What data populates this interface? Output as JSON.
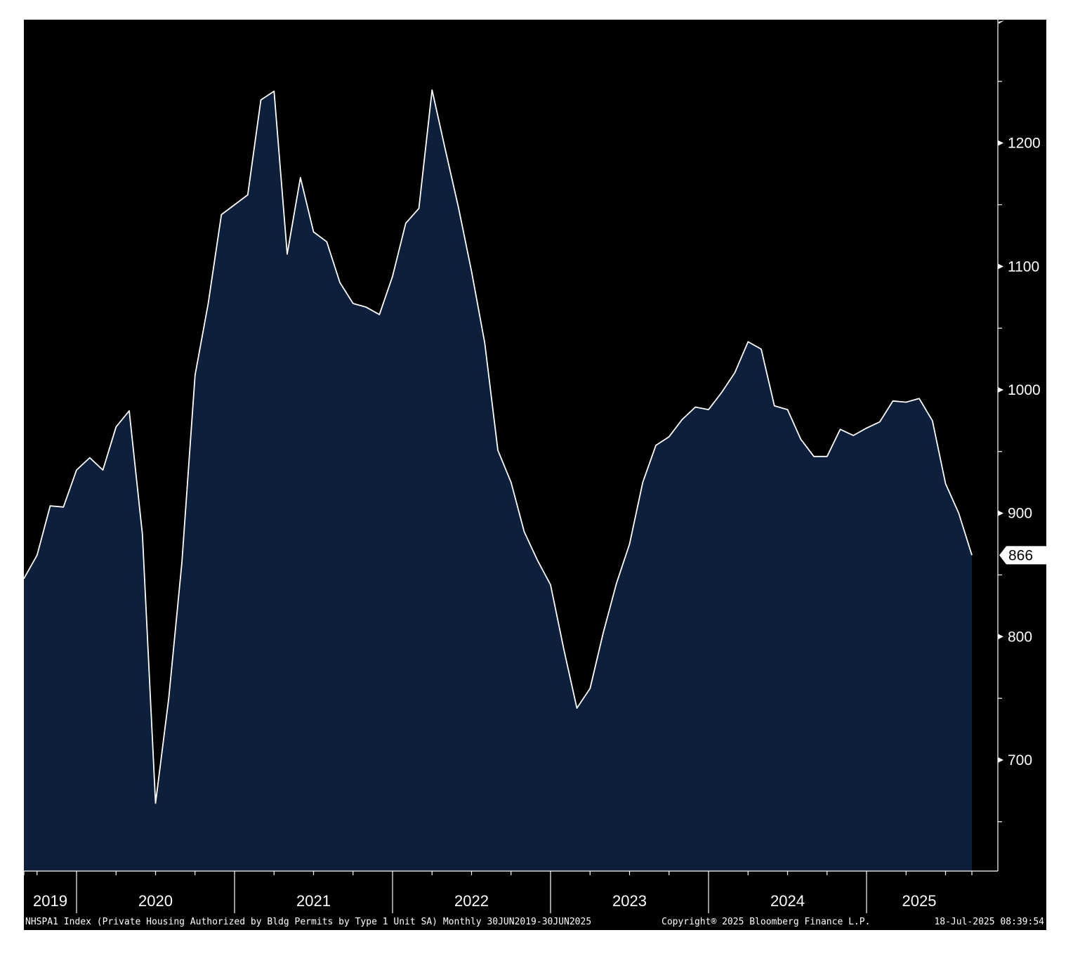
{
  "chart_data": {
    "type": "area",
    "frequency": "monthly",
    "x_start": "2019-06",
    "x_end": "2025-06",
    "ylim": [
      610,
      1300
    ],
    "yticks": [
      700,
      800,
      900,
      1000,
      1100,
      1200
    ],
    "year_labels": [
      "2019",
      "2020",
      "2021",
      "2022",
      "2023",
      "2024",
      "2025"
    ],
    "grid": false,
    "colors": {
      "background": "#000000",
      "area_fill": "#0e1f3b",
      "line": "#ffffff"
    },
    "last_value_label": "866",
    "series": [
      {
        "values": [
          847,
          866,
          906,
          905,
          935,
          945,
          935,
          970,
          983,
          883,
          665,
          750,
          860,
          1012,
          1070,
          1142,
          1150,
          1158,
          1235,
          1242,
          1110,
          1172,
          1128,
          1120,
          1087,
          1070,
          1067,
          1061,
          1092,
          1135,
          1147,
          1243,
          1195,
          1148,
          1096,
          1038,
          951,
          925,
          885,
          862,
          842,
          790,
          742,
          758,
          803,
          843,
          875,
          925,
          955,
          962,
          976,
          986,
          984,
          998,
          1014,
          1039,
          1033,
          987,
          984,
          960,
          946,
          946,
          968,
          963,
          969,
          974,
          991,
          990,
          993,
          975,
          924,
          900,
          866
        ]
      }
    ]
  },
  "footer": {
    "source": "NHSPA1 Index (Private Housing Authorized by Bldg Permits by Type 1 Unit SA)  Monthly 30JUN2019-30JUN2025",
    "copyright": "Copyright® 2025 Bloomberg Finance L.P.",
    "timestamp": "18-Jul-2025 08:39:54"
  }
}
